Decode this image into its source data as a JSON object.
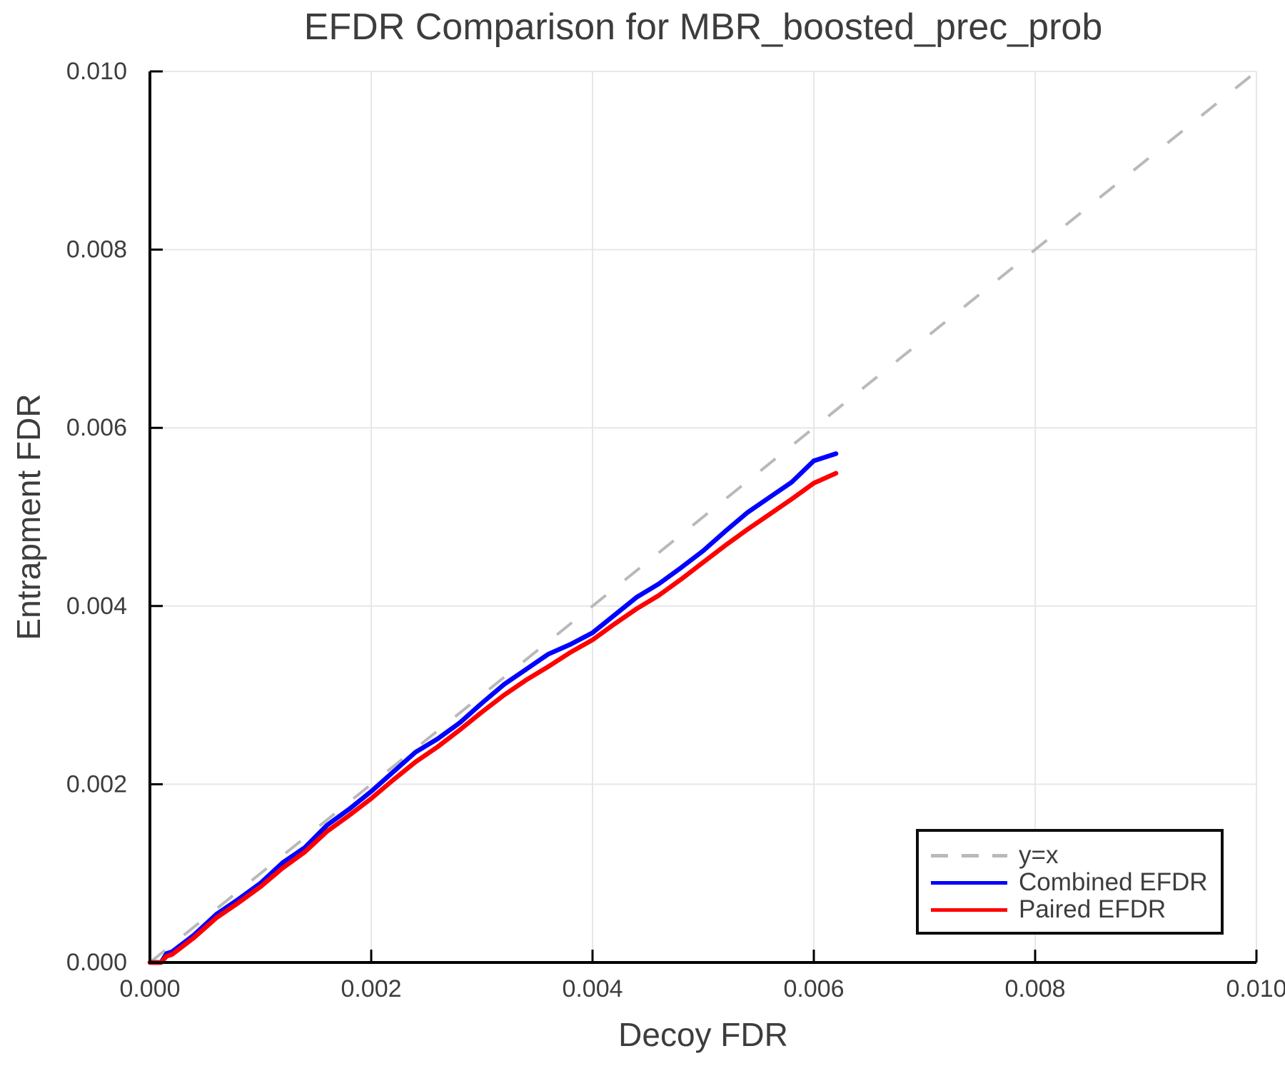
{
  "figure": {
    "title": "EFDR Comparison for MBR_boosted_prec_prob",
    "background_color": "#ffffff",
    "text_color": "#3d3d3d",
    "spine_color": "#000000",
    "grid_color": "#e7e7e7"
  },
  "chart_data": {
    "type": "line",
    "title": "EFDR Comparison for MBR_boosted_prec_prob",
    "xlabel": "Decoy FDR",
    "ylabel": "Entrapment FDR",
    "xlim": [
      0.0,
      0.01
    ],
    "ylim": [
      0.0,
      0.01
    ],
    "grid": true,
    "xticks": {
      "values": [
        0.0,
        0.002,
        0.004,
        0.006,
        0.008,
        0.01
      ],
      "labels": [
        "0.000",
        "0.002",
        "0.004",
        "0.006",
        "0.008",
        "0.010"
      ]
    },
    "yticks": {
      "values": [
        0.0,
        0.002,
        0.004,
        0.006,
        0.008,
        0.01
      ],
      "labels": [
        "0.000",
        "0.002",
        "0.004",
        "0.006",
        "0.008",
        "0.010"
      ]
    },
    "reference_line": {
      "label": "y=x",
      "style": "dashed",
      "color": "#b9b9b9",
      "from": [
        0.0,
        0.0
      ],
      "to": [
        0.01,
        0.01
      ]
    },
    "series": [
      {
        "name": "Combined EFDR",
        "color": "#0000ff",
        "x": [
          0.0,
          0.0001,
          0.00015,
          0.0002,
          0.0004,
          0.0006,
          0.0008,
          0.001,
          0.0012,
          0.0014,
          0.0016,
          0.0018,
          0.002,
          0.0022,
          0.0024,
          0.0026,
          0.0028,
          0.003,
          0.0032,
          0.0034,
          0.0036,
          0.0038,
          0.004,
          0.0042,
          0.0044,
          0.0046,
          0.0048,
          0.005,
          0.0052,
          0.0054,
          0.0056,
          0.0058,
          0.006,
          0.0062
        ],
        "y": [
          0.0,
          0.0,
          0.0001,
          0.00012,
          0.00031,
          0.00054,
          0.00071,
          0.00089,
          0.00112,
          0.00129,
          0.00154,
          0.00172,
          0.00192,
          0.00214,
          0.00236,
          0.00251,
          0.00269,
          0.00291,
          0.00312,
          0.00329,
          0.00346,
          0.00357,
          0.0037,
          0.0039,
          0.0041,
          0.00425,
          0.00443,
          0.00462,
          0.00484,
          0.00505,
          0.00522,
          0.00539,
          0.00563,
          0.00571
        ]
      },
      {
        "name": "Paired EFDR",
        "color": "#ff0000",
        "x": [
          0.0,
          0.0001,
          0.00015,
          0.0002,
          0.0004,
          0.0006,
          0.0008,
          0.001,
          0.0012,
          0.0014,
          0.0016,
          0.0018,
          0.002,
          0.0022,
          0.0024,
          0.0026,
          0.0028,
          0.003,
          0.0032,
          0.0034,
          0.0036,
          0.0038,
          0.004,
          0.0042,
          0.0044,
          0.0046,
          0.0048,
          0.005,
          0.0052,
          0.0054,
          0.0056,
          0.0058,
          0.006,
          0.0062
        ],
        "y": [
          0.0,
          0.0,
          7e-05,
          9e-05,
          0.00028,
          0.0005,
          0.00067,
          0.00085,
          0.00106,
          0.00124,
          0.00147,
          0.00165,
          0.00184,
          0.00205,
          0.00225,
          0.00242,
          0.00261,
          0.00281,
          0.003,
          0.00317,
          0.00332,
          0.00348,
          0.00362,
          0.0038,
          0.00397,
          0.00412,
          0.0043,
          0.00449,
          0.00468,
          0.00486,
          0.00503,
          0.0052,
          0.00538,
          0.00549
        ]
      }
    ],
    "legend": {
      "position": "lower right",
      "entries": [
        {
          "label": "y=x",
          "color": "#b9b9b9",
          "style": "dashed"
        },
        {
          "label": "Combined EFDR",
          "color": "#0000ff",
          "style": "solid"
        },
        {
          "label": "Paired EFDR",
          "color": "#ff0000",
          "style": "solid"
        }
      ]
    }
  }
}
